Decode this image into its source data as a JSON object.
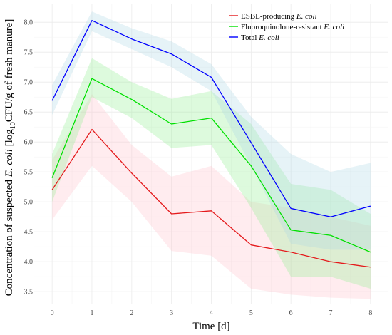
{
  "chart_data": {
    "type": "line",
    "x": [
      0,
      1,
      2,
      3,
      4,
      5,
      6,
      7,
      8
    ],
    "x_ticks": [
      "0",
      "1",
      "2",
      "3",
      "4",
      "5",
      "6",
      "7",
      "8"
    ],
    "y_ticks": [
      "3.5",
      "4.0",
      "4.5",
      "5.0",
      "5.5",
      "6.0",
      "6.5",
      "7.0",
      "7.5",
      "8.0"
    ],
    "xlim": [
      -0.45,
      8.45
    ],
    "ylim": [
      3.3,
      8.3
    ],
    "xlabel": "Time [d]",
    "ylabel_parts": [
      "Concentration of suspected ",
      "E. coli",
      " [log",
      "10",
      "CFU/g of fresh manure]"
    ],
    "grid": true,
    "legend_position": "top-right",
    "series": [
      {
        "key": "esbl",
        "name_parts": [
          "ESBL-producing ",
          "E. coli"
        ],
        "color": "#e41a1c",
        "band_color": "#ffc0cb",
        "values": [
          5.2,
          6.21,
          5.48,
          4.8,
          4.85,
          4.28,
          4.16,
          4.0,
          3.91
        ],
        "lower": [
          4.7,
          5.6,
          5.0,
          4.18,
          4.1,
          3.55,
          3.45,
          3.4,
          3.38
        ],
        "upper": [
          5.7,
          6.8,
          5.95,
          5.42,
          5.6,
          5.0,
          4.9,
          4.75,
          4.6
        ]
      },
      {
        "key": "fq",
        "name_parts": [
          "Fluoroquinolone-resistant ",
          "E. coli"
        ],
        "color": "#00e000",
        "band_color": "#90ee90",
        "values": [
          5.4,
          7.06,
          6.71,
          6.3,
          6.4,
          5.6,
          4.53,
          4.44,
          4.16
        ],
        "lower": [
          5.0,
          6.75,
          6.4,
          5.9,
          5.95,
          4.9,
          3.75,
          3.75,
          3.55
        ],
        "upper": [
          5.8,
          7.4,
          7.0,
          6.72,
          6.85,
          6.3,
          5.3,
          5.2,
          4.8
        ]
      },
      {
        "key": "total",
        "name_parts": [
          "Total ",
          "E. coli"
        ],
        "color": "#0000ff",
        "band_color": "#add8e6",
        "values": [
          6.69,
          8.03,
          7.72,
          7.47,
          7.08,
          5.99,
          4.89,
          4.75,
          4.93
        ],
        "lower": [
          6.45,
          7.85,
          7.55,
          7.25,
          6.85,
          5.6,
          4.3,
          4.2,
          4.2
        ],
        "upper": [
          6.95,
          8.18,
          7.9,
          7.68,
          7.3,
          6.42,
          5.8,
          5.5,
          5.65
        ]
      }
    ]
  }
}
